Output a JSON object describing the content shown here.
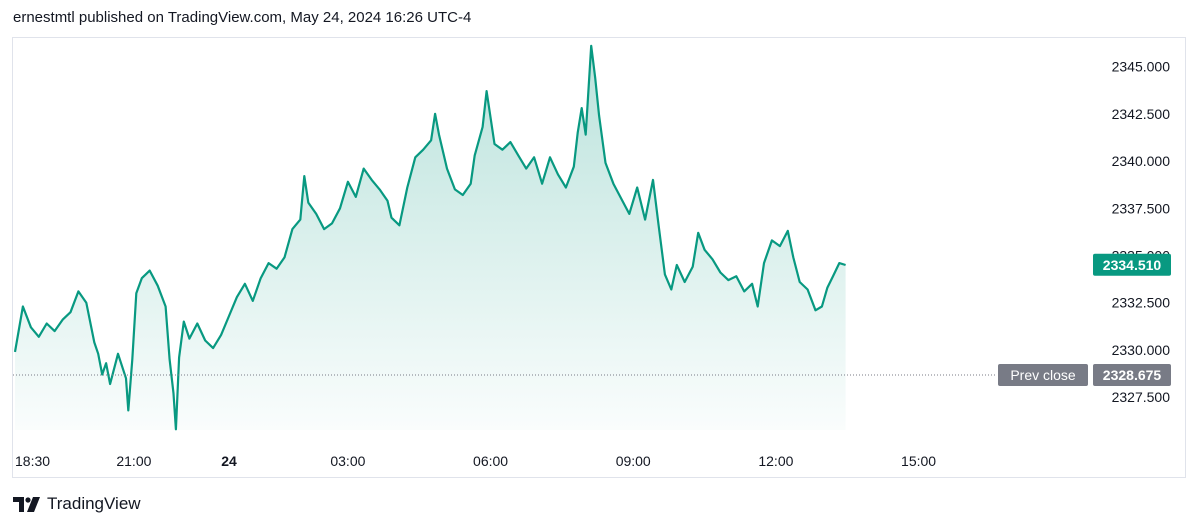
{
  "header": {
    "text": "ernestmtl published on TradingView.com, May 24, 2024 16:26 UTC-4"
  },
  "footer": {
    "brand": "TradingView",
    "logo_icon": "tradingview-logo-icon"
  },
  "colors": {
    "line": "#089981",
    "fill": "#089981",
    "axis_text": "#131722",
    "prev_close_bg": "#787b86",
    "last_price_bg": "#089981"
  },
  "chart_data": {
    "type": "area",
    "x_ticks": [
      {
        "label": "18:30",
        "t": 0
      },
      {
        "label": "21:00",
        "t": 150
      },
      {
        "label": "24",
        "t": 270
      },
      {
        "label": "03:00",
        "t": 420
      },
      {
        "label": "06:00",
        "t": 600
      },
      {
        "label": "09:00",
        "t": 780
      },
      {
        "label": "12:00",
        "t": 960
      },
      {
        "label": "15:00",
        "t": 1140
      }
    ],
    "y_ticks": [
      "2345.000",
      "2342.500",
      "2340.000",
      "2337.500",
      "2335.000",
      "2332.500",
      "2330.000",
      "2327.500"
    ],
    "ylim": [
      2325.5,
      2346.3
    ],
    "xlim_minutes": [
      0,
      1350
    ],
    "grid": false,
    "series": [
      {
        "values": [
          [
            0,
            2329.9
          ],
          [
            10,
            2332.3
          ],
          [
            20,
            2331.2
          ],
          [
            30,
            2330.7
          ],
          [
            40,
            2331.4
          ],
          [
            50,
            2331.0
          ],
          [
            60,
            2331.6
          ],
          [
            70,
            2332.0
          ],
          [
            80,
            2333.1
          ],
          [
            90,
            2332.5
          ],
          [
            100,
            2330.4
          ],
          [
            105,
            2329.8
          ],
          [
            110,
            2328.7
          ],
          [
            115,
            2329.3
          ],
          [
            120,
            2328.2
          ],
          [
            130,
            2329.8
          ],
          [
            140,
            2328.5
          ],
          [
            143,
            2326.8
          ],
          [
            148,
            2329.5
          ],
          [
            153,
            2333.0
          ],
          [
            160,
            2333.8
          ],
          [
            170,
            2334.2
          ],
          [
            180,
            2333.4
          ],
          [
            190,
            2332.3
          ],
          [
            195,
            2329.5
          ],
          [
            200,
            2327.7
          ],
          [
            203,
            2325.8
          ],
          [
            207,
            2329.6
          ],
          [
            213,
            2331.5
          ],
          [
            220,
            2330.6
          ],
          [
            230,
            2331.4
          ],
          [
            240,
            2330.5
          ],
          [
            250,
            2330.1
          ],
          [
            260,
            2330.8
          ],
          [
            270,
            2331.8
          ],
          [
            280,
            2332.8
          ],
          [
            290,
            2333.5
          ],
          [
            300,
            2332.6
          ],
          [
            310,
            2333.8
          ],
          [
            320,
            2334.6
          ],
          [
            330,
            2334.3
          ],
          [
            340,
            2334.9
          ],
          [
            350,
            2336.4
          ],
          [
            360,
            2336.9
          ],
          [
            365,
            2339.2
          ],
          [
            370,
            2337.8
          ],
          [
            380,
            2337.2
          ],
          [
            390,
            2336.4
          ],
          [
            400,
            2336.7
          ],
          [
            410,
            2337.5
          ],
          [
            420,
            2338.9
          ],
          [
            430,
            2338.1
          ],
          [
            440,
            2339.6
          ],
          [
            450,
            2339.0
          ],
          [
            460,
            2338.5
          ],
          [
            470,
            2337.9
          ],
          [
            475,
            2337.0
          ],
          [
            485,
            2336.6
          ],
          [
            495,
            2338.6
          ],
          [
            505,
            2340.2
          ],
          [
            515,
            2340.6
          ],
          [
            525,
            2341.1
          ],
          [
            530,
            2342.5
          ],
          [
            535,
            2341.4
          ],
          [
            545,
            2339.6
          ],
          [
            555,
            2338.5
          ],
          [
            565,
            2338.2
          ],
          [
            575,
            2338.8
          ],
          [
            580,
            2340.3
          ],
          [
            590,
            2341.8
          ],
          [
            595,
            2343.7
          ],
          [
            605,
            2340.9
          ],
          [
            615,
            2340.6
          ],
          [
            625,
            2341.0
          ],
          [
            635,
            2340.3
          ],
          [
            645,
            2339.6
          ],
          [
            655,
            2340.2
          ],
          [
            665,
            2338.8
          ],
          [
            675,
            2340.2
          ],
          [
            685,
            2339.3
          ],
          [
            695,
            2338.6
          ],
          [
            705,
            2339.7
          ],
          [
            710,
            2341.5
          ],
          [
            715,
            2342.8
          ],
          [
            720,
            2341.4
          ],
          [
            727,
            2346.1
          ],
          [
            732,
            2344.4
          ],
          [
            737,
            2342.4
          ],
          [
            745,
            2339.9
          ],
          [
            755,
            2338.8
          ],
          [
            765,
            2338.0
          ],
          [
            775,
            2337.2
          ],
          [
            785,
            2338.6
          ],
          [
            795,
            2336.9
          ],
          [
            805,
            2339.0
          ],
          [
            812,
            2336.6
          ],
          [
            820,
            2334.0
          ],
          [
            828,
            2333.2
          ],
          [
            835,
            2334.5
          ],
          [
            845,
            2333.6
          ],
          [
            855,
            2334.4
          ],
          [
            862,
            2336.2
          ],
          [
            870,
            2335.3
          ],
          [
            880,
            2334.8
          ],
          [
            890,
            2334.1
          ],
          [
            900,
            2333.7
          ],
          [
            910,
            2333.9
          ],
          [
            920,
            2333.1
          ],
          [
            930,
            2333.5
          ],
          [
            937,
            2332.3
          ],
          [
            945,
            2334.6
          ],
          [
            955,
            2335.8
          ],
          [
            965,
            2335.5
          ],
          [
            975,
            2336.3
          ],
          [
            982,
            2334.9
          ],
          [
            990,
            2333.6
          ],
          [
            1000,
            2333.2
          ],
          [
            1010,
            2332.1
          ],
          [
            1018,
            2332.3
          ],
          [
            1025,
            2333.3
          ],
          [
            1032,
            2333.9
          ],
          [
            1040,
            2334.6
          ],
          [
            1048,
            2334.5
          ]
        ]
      }
    ],
    "last_price": {
      "label": "2334.510",
      "value": 2334.51
    },
    "prev_close": {
      "label": "Prev close",
      "price_label": "2328.675",
      "value": 2328.675
    }
  }
}
